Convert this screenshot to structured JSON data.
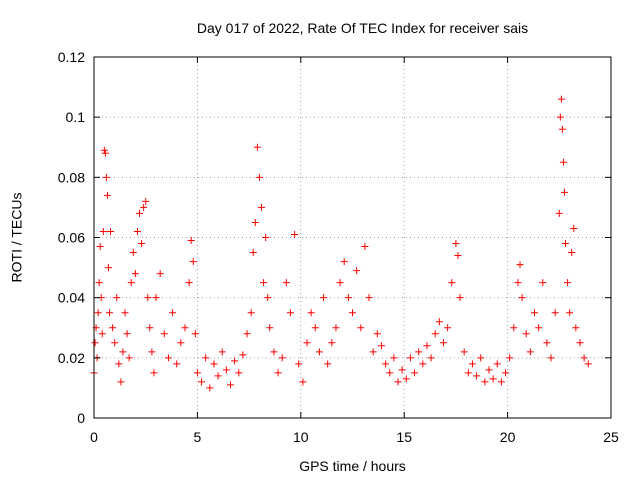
{
  "chart_data": {
    "type": "scatter",
    "title": "Day 017 of 2022, Rate Of TEC Index for receiver sais",
    "xlabel": "GPS time / hours",
    "ylabel": "ROTI / TECUs",
    "xlim": [
      0,
      25
    ],
    "ylim": [
      0,
      0.12
    ],
    "xticks": [
      0,
      5,
      10,
      15,
      20,
      25
    ],
    "yticks": [
      0,
      0.02,
      0.04,
      0.06,
      0.08,
      0.1,
      0.12
    ],
    "xtick_labels": [
      "0",
      "5",
      "10",
      "15",
      "20",
      "25"
    ],
    "ytick_labels": [
      "0",
      "0.02",
      "0.04",
      "0.06",
      "0.08",
      "0.1",
      "0.12"
    ],
    "grid": true,
    "marker": "plus",
    "color": "#ff0000",
    "series": [
      {
        "points": [
          [
            0.0,
            0.015
          ],
          [
            0.05,
            0.025
          ],
          [
            0.1,
            0.03
          ],
          [
            0.15,
            0.02
          ],
          [
            0.2,
            0.035
          ],
          [
            0.25,
            0.045
          ],
          [
            0.3,
            0.057
          ],
          [
            0.35,
            0.04
          ],
          [
            0.4,
            0.028
          ],
          [
            0.45,
            0.062
          ],
          [
            0.5,
            0.089
          ],
          [
            0.55,
            0.088
          ],
          [
            0.6,
            0.08
          ],
          [
            0.65,
            0.074
          ],
          [
            0.7,
            0.05
          ],
          [
            0.75,
            0.035
          ],
          [
            0.8,
            0.062
          ],
          [
            0.9,
            0.03
          ],
          [
            1.0,
            0.025
          ],
          [
            1.1,
            0.04
          ],
          [
            1.2,
            0.018
          ],
          [
            1.3,
            0.012
          ],
          [
            1.4,
            0.022
          ],
          [
            1.5,
            0.035
          ],
          [
            1.6,
            0.028
          ],
          [
            1.7,
            0.02
          ],
          [
            1.8,
            0.045
          ],
          [
            1.9,
            0.055
          ],
          [
            2.0,
            0.048
          ],
          [
            2.1,
            0.062
          ],
          [
            2.2,
            0.068
          ],
          [
            2.3,
            0.058
          ],
          [
            2.4,
            0.07
          ],
          [
            2.5,
            0.072
          ],
          [
            2.6,
            0.04
          ],
          [
            2.7,
            0.03
          ],
          [
            2.8,
            0.022
          ],
          [
            2.9,
            0.015
          ],
          [
            3.0,
            0.04
          ],
          [
            3.2,
            0.048
          ],
          [
            3.4,
            0.028
          ],
          [
            3.6,
            0.02
          ],
          [
            3.8,
            0.035
          ],
          [
            4.0,
            0.018
          ],
          [
            4.2,
            0.025
          ],
          [
            4.4,
            0.03
          ],
          [
            4.6,
            0.045
          ],
          [
            4.7,
            0.059
          ],
          [
            4.8,
            0.052
          ],
          [
            4.9,
            0.028
          ],
          [
            5.0,
            0.015
          ],
          [
            5.2,
            0.012
          ],
          [
            5.4,
            0.02
          ],
          [
            5.6,
            0.01
          ],
          [
            5.8,
            0.018
          ],
          [
            6.0,
            0.014
          ],
          [
            6.2,
            0.022
          ],
          [
            6.4,
            0.016
          ],
          [
            6.6,
            0.011
          ],
          [
            6.8,
            0.019
          ],
          [
            7.0,
            0.015
          ],
          [
            7.2,
            0.021
          ],
          [
            7.4,
            0.028
          ],
          [
            7.6,
            0.035
          ],
          [
            7.7,
            0.055
          ],
          [
            7.8,
            0.065
          ],
          [
            7.9,
            0.09
          ],
          [
            8.0,
            0.08
          ],
          [
            8.1,
            0.07
          ],
          [
            8.2,
            0.045
          ],
          [
            8.3,
            0.06
          ],
          [
            8.4,
            0.04
          ],
          [
            8.5,
            0.03
          ],
          [
            8.7,
            0.022
          ],
          [
            8.9,
            0.015
          ],
          [
            9.1,
            0.02
          ],
          [
            9.3,
            0.045
          ],
          [
            9.5,
            0.035
          ],
          [
            9.7,
            0.061
          ],
          [
            9.9,
            0.018
          ],
          [
            10.1,
            0.012
          ],
          [
            10.3,
            0.025
          ],
          [
            10.5,
            0.035
          ],
          [
            10.7,
            0.03
          ],
          [
            10.9,
            0.022
          ],
          [
            11.1,
            0.04
          ],
          [
            11.3,
            0.018
          ],
          [
            11.5,
            0.025
          ],
          [
            11.7,
            0.03
          ],
          [
            11.9,
            0.045
          ],
          [
            12.1,
            0.052
          ],
          [
            12.3,
            0.04
          ],
          [
            12.5,
            0.035
          ],
          [
            12.7,
            0.049
          ],
          [
            12.9,
            0.03
          ],
          [
            13.1,
            0.057
          ],
          [
            13.3,
            0.04
          ],
          [
            13.5,
            0.022
          ],
          [
            13.7,
            0.028
          ],
          [
            13.9,
            0.024
          ],
          [
            14.1,
            0.018
          ],
          [
            14.3,
            0.015
          ],
          [
            14.5,
            0.02
          ],
          [
            14.7,
            0.012
          ],
          [
            14.9,
            0.016
          ],
          [
            15.1,
            0.013
          ],
          [
            15.3,
            0.02
          ],
          [
            15.5,
            0.015
          ],
          [
            15.7,
            0.022
          ],
          [
            15.9,
            0.018
          ],
          [
            16.1,
            0.024
          ],
          [
            16.3,
            0.02
          ],
          [
            16.5,
            0.028
          ],
          [
            16.7,
            0.032
          ],
          [
            16.9,
            0.025
          ],
          [
            17.1,
            0.03
          ],
          [
            17.3,
            0.045
          ],
          [
            17.5,
            0.058
          ],
          [
            17.6,
            0.054
          ],
          [
            17.7,
            0.04
          ],
          [
            17.9,
            0.022
          ],
          [
            18.1,
            0.015
          ],
          [
            18.3,
            0.018
          ],
          [
            18.5,
            0.014
          ],
          [
            18.7,
            0.02
          ],
          [
            18.9,
            0.012
          ],
          [
            19.1,
            0.016
          ],
          [
            19.3,
            0.013
          ],
          [
            19.5,
            0.018
          ],
          [
            19.7,
            0.012
          ],
          [
            19.9,
            0.015
          ],
          [
            20.1,
            0.02
          ],
          [
            20.3,
            0.03
          ],
          [
            20.5,
            0.045
          ],
          [
            20.6,
            0.051
          ],
          [
            20.7,
            0.04
          ],
          [
            20.9,
            0.028
          ],
          [
            21.1,
            0.022
          ],
          [
            21.3,
            0.035
          ],
          [
            21.5,
            0.03
          ],
          [
            21.7,
            0.045
          ],
          [
            21.9,
            0.025
          ],
          [
            22.1,
            0.02
          ],
          [
            22.3,
            0.035
          ],
          [
            22.5,
            0.068
          ],
          [
            22.55,
            0.1
          ],
          [
            22.6,
            0.106
          ],
          [
            22.65,
            0.096
          ],
          [
            22.7,
            0.085
          ],
          [
            22.75,
            0.075
          ],
          [
            22.8,
            0.058
          ],
          [
            22.9,
            0.045
          ],
          [
            23.0,
            0.035
          ],
          [
            23.1,
            0.055
          ],
          [
            23.2,
            0.063
          ],
          [
            23.3,
            0.03
          ],
          [
            23.5,
            0.025
          ],
          [
            23.7,
            0.02
          ],
          [
            23.9,
            0.018
          ]
        ]
      }
    ]
  }
}
